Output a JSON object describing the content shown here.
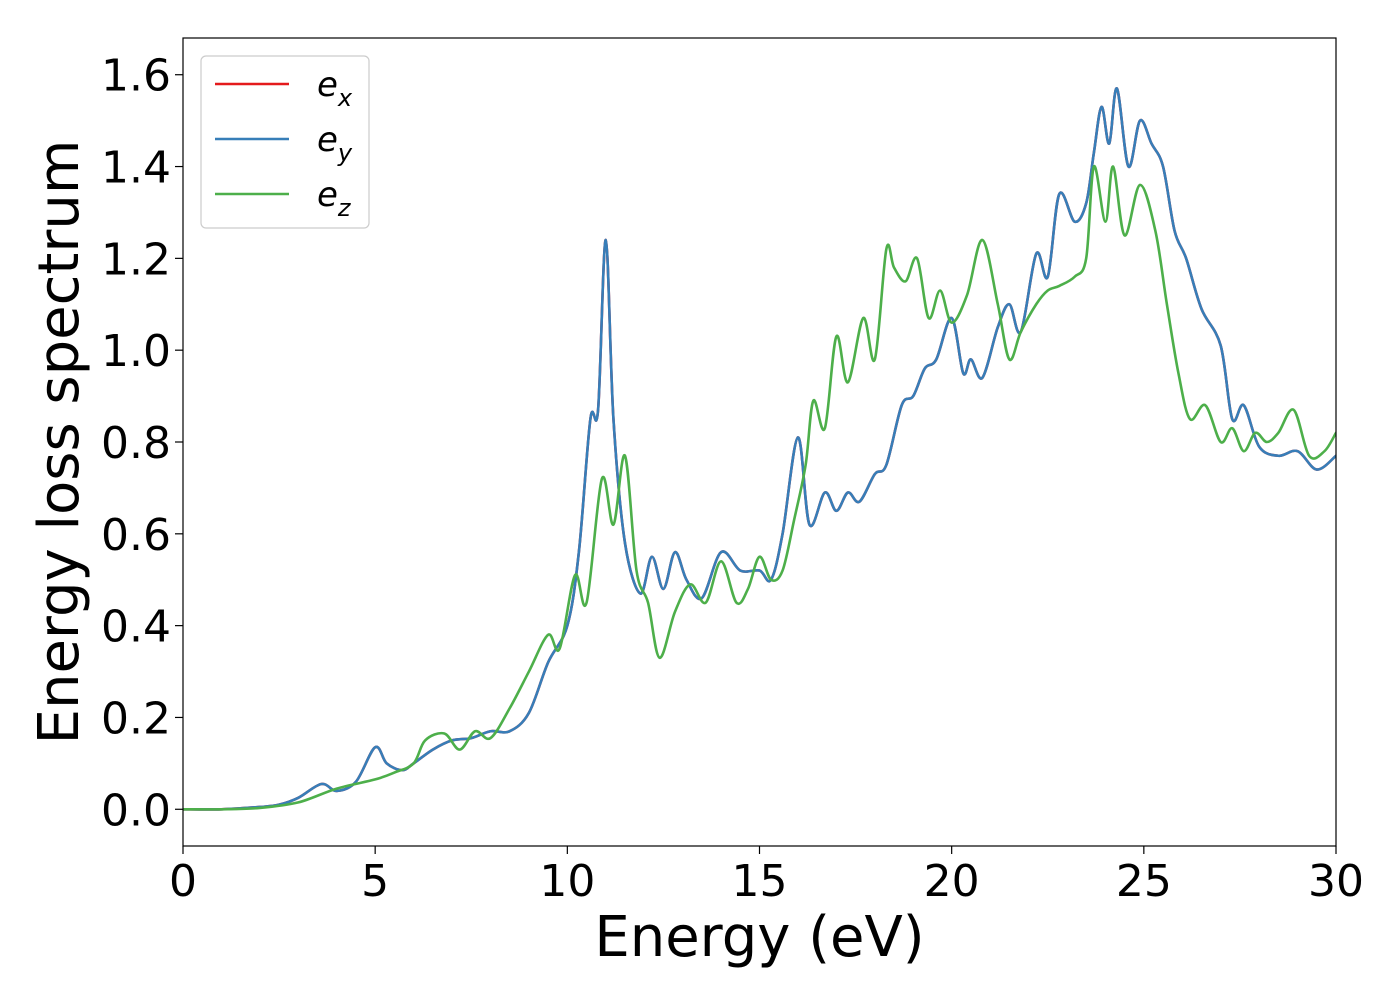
{
  "chart_data": {
    "type": "line",
    "xlabel": "Energy (eV)",
    "ylabel": "Energy loss spectrum",
    "xlim": [
      0,
      30
    ],
    "ylim": [
      -0.08,
      1.68
    ],
    "xticks": [
      0,
      5,
      10,
      15,
      20,
      25,
      30
    ],
    "xtick_labels": [
      "0",
      "5",
      "10",
      "15",
      "20",
      "25",
      "30"
    ],
    "yticks": [
      0.0,
      0.2,
      0.4,
      0.6,
      0.8,
      1.0,
      1.2,
      1.4,
      1.6
    ],
    "ytick_labels": [
      "0.0",
      "0.2",
      "0.4",
      "0.6",
      "0.8",
      "1.0",
      "1.2",
      "1.4",
      "1.6"
    ],
    "grid": false,
    "legend_position": "top-left",
    "series": [
      {
        "name": "e_x",
        "legend_base": "e",
        "legend_sub": "x",
        "color": "#e41a1c",
        "x": [
          0,
          1,
          2,
          2.5,
          3,
          3.6,
          4,
          4.5,
          5,
          5.3,
          5.7,
          6,
          6.5,
          7,
          7.5,
          8,
          8.5,
          9,
          9.5,
          10,
          10.3,
          10.6,
          10.8,
          11,
          11.2,
          11.5,
          11.9,
          12.2,
          12.5,
          12.8,
          13.1,
          13.5,
          14,
          14.5,
          15,
          15.3,
          15.6,
          16,
          16.3,
          16.7,
          17,
          17.3,
          17.6,
          18,
          18.3,
          18.7,
          19,
          19.3,
          19.6,
          20,
          20.3,
          20.5,
          20.8,
          21.2,
          21.5,
          21.8,
          22.2,
          22.5,
          22.8,
          23.2,
          23.5,
          23.7,
          23.9,
          24.1,
          24.3,
          24.6,
          24.9,
          25.2,
          25.5,
          25.8,
          26.1,
          26.5,
          27,
          27.3,
          27.6,
          28,
          28.5,
          29,
          29.5,
          30
        ],
        "y": [
          0.0,
          0.0,
          0.005,
          0.01,
          0.025,
          0.055,
          0.04,
          0.06,
          0.135,
          0.1,
          0.085,
          0.1,
          0.13,
          0.15,
          0.155,
          0.17,
          0.17,
          0.21,
          0.32,
          0.4,
          0.56,
          0.85,
          0.87,
          1.24,
          0.85,
          0.58,
          0.47,
          0.55,
          0.48,
          0.56,
          0.5,
          0.46,
          0.56,
          0.52,
          0.52,
          0.5,
          0.6,
          0.81,
          0.62,
          0.69,
          0.65,
          0.69,
          0.67,
          0.73,
          0.75,
          0.88,
          0.9,
          0.96,
          0.98,
          1.07,
          0.95,
          0.98,
          0.94,
          1.05,
          1.1,
          1.04,
          1.21,
          1.16,
          1.34,
          1.28,
          1.32,
          1.43,
          1.53,
          1.45,
          1.57,
          1.4,
          1.5,
          1.45,
          1.4,
          1.26,
          1.2,
          1.09,
          1.01,
          0.85,
          0.88,
          0.79,
          0.77,
          0.78,
          0.74,
          0.77
        ]
      },
      {
        "name": "e_y",
        "legend_base": "e",
        "legend_sub": "y",
        "color": "#377eb8",
        "x": [
          0,
          1,
          2,
          2.5,
          3,
          3.6,
          4,
          4.5,
          5,
          5.3,
          5.7,
          6,
          6.5,
          7,
          7.5,
          8,
          8.5,
          9,
          9.5,
          10,
          10.3,
          10.6,
          10.8,
          11,
          11.2,
          11.5,
          11.9,
          12.2,
          12.5,
          12.8,
          13.1,
          13.5,
          14,
          14.5,
          15,
          15.3,
          15.6,
          16,
          16.3,
          16.7,
          17,
          17.3,
          17.6,
          18,
          18.3,
          18.7,
          19,
          19.3,
          19.6,
          20,
          20.3,
          20.5,
          20.8,
          21.2,
          21.5,
          21.8,
          22.2,
          22.5,
          22.8,
          23.2,
          23.5,
          23.7,
          23.9,
          24.1,
          24.3,
          24.6,
          24.9,
          25.2,
          25.5,
          25.8,
          26.1,
          26.5,
          27,
          27.3,
          27.6,
          28,
          28.5,
          29,
          29.5,
          30
        ],
        "y": [
          0.0,
          0.0,
          0.005,
          0.01,
          0.025,
          0.055,
          0.04,
          0.06,
          0.135,
          0.1,
          0.085,
          0.1,
          0.13,
          0.15,
          0.155,
          0.17,
          0.17,
          0.21,
          0.32,
          0.4,
          0.56,
          0.85,
          0.87,
          1.24,
          0.85,
          0.58,
          0.47,
          0.55,
          0.48,
          0.56,
          0.5,
          0.46,
          0.56,
          0.52,
          0.52,
          0.5,
          0.6,
          0.81,
          0.62,
          0.69,
          0.65,
          0.69,
          0.67,
          0.73,
          0.75,
          0.88,
          0.9,
          0.96,
          0.98,
          1.07,
          0.95,
          0.98,
          0.94,
          1.05,
          1.1,
          1.04,
          1.21,
          1.16,
          1.34,
          1.28,
          1.32,
          1.43,
          1.53,
          1.45,
          1.57,
          1.4,
          1.5,
          1.45,
          1.4,
          1.26,
          1.2,
          1.09,
          1.01,
          0.85,
          0.88,
          0.79,
          0.77,
          0.78,
          0.74,
          0.77
        ]
      },
      {
        "name": "e_z",
        "legend_base": "e",
        "legend_sub": "z",
        "color": "#4daf4a",
        "x": [
          0,
          1,
          2,
          3,
          4,
          5,
          5.5,
          6,
          6.3,
          6.8,
          7.2,
          7.6,
          8,
          8.5,
          9,
          9.5,
          9.8,
          10.2,
          10.5,
          10.9,
          11.2,
          11.5,
          11.8,
          12.1,
          12.4,
          12.8,
          13.2,
          13.6,
          14,
          14.4,
          14.7,
          15,
          15.3,
          15.6,
          15.9,
          16.2,
          16.4,
          16.7,
          17,
          17.3,
          17.7,
          18,
          18.3,
          18.5,
          18.8,
          19.1,
          19.4,
          19.7,
          20,
          20.4,
          20.8,
          21.2,
          21.5,
          21.8,
          22.2,
          22.5,
          22.8,
          23.2,
          23.5,
          23.7,
          24,
          24.2,
          24.5,
          24.9,
          25.3,
          25.6,
          25.9,
          26.2,
          26.6,
          27,
          27.3,
          27.6,
          27.9,
          28.2,
          28.5,
          28.9,
          29.3,
          29.7,
          30
        ],
        "y": [
          0.0,
          0.0,
          0.003,
          0.015,
          0.045,
          0.065,
          0.08,
          0.1,
          0.15,
          0.165,
          0.13,
          0.17,
          0.155,
          0.22,
          0.3,
          0.38,
          0.35,
          0.51,
          0.45,
          0.72,
          0.62,
          0.77,
          0.52,
          0.45,
          0.33,
          0.43,
          0.49,
          0.45,
          0.54,
          0.45,
          0.48,
          0.55,
          0.5,
          0.52,
          0.63,
          0.75,
          0.89,
          0.83,
          1.03,
          0.93,
          1.07,
          0.98,
          1.22,
          1.18,
          1.15,
          1.2,
          1.07,
          1.13,
          1.06,
          1.12,
          1.24,
          1.1,
          0.98,
          1.04,
          1.1,
          1.13,
          1.14,
          1.16,
          1.2,
          1.4,
          1.28,
          1.4,
          1.25,
          1.36,
          1.26,
          1.1,
          0.95,
          0.85,
          0.88,
          0.8,
          0.83,
          0.78,
          0.82,
          0.8,
          0.82,
          0.87,
          0.77,
          0.78,
          0.82
        ]
      }
    ]
  }
}
